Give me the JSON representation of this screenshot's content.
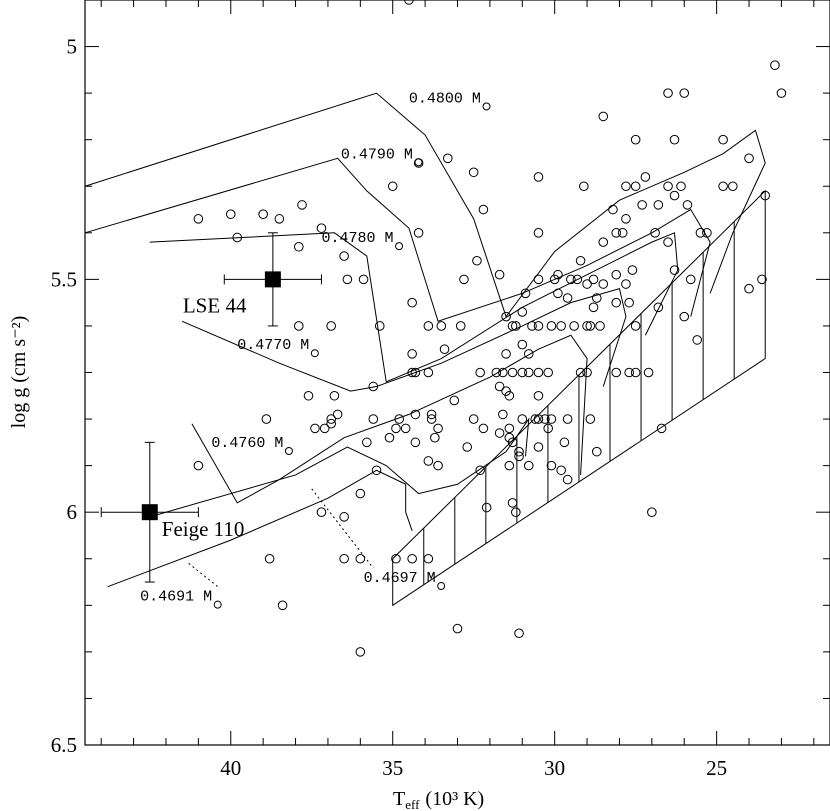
{
  "chart_data": {
    "type": "scatter",
    "xlabel_main": "T",
    "xlabel_sub": "eff",
    "xlabel_unit": "(10³ K)",
    "ylabel": "log g (cm s⁻²)",
    "xlim": [
      44.5,
      21.5
    ],
    "ylim": [
      4.9,
      6.5
    ],
    "x_ticks": [
      40,
      35,
      30,
      25
    ],
    "y_ticks": [
      5,
      5.5,
      6,
      6.5
    ],
    "y_tick_labels": [
      "5",
      "5.5",
      "6",
      "6.5"
    ],
    "tracks": [
      {
        "label": "0.4800 M",
        "points": [
          [
            44.5,
            5.3
          ],
          [
            35.5,
            5.1
          ],
          [
            34,
            5.19
          ],
          [
            32.5,
            5.37
          ],
          [
            31.5,
            5.58
          ],
          [
            30,
            5.44
          ],
          [
            28,
            5.33
          ],
          [
            26,
            5.27
          ],
          [
            24.8,
            5.23
          ],
          [
            23.8,
            5.18
          ],
          [
            23.5,
            5.25
          ],
          [
            24.5,
            5.4
          ],
          [
            25.2,
            5.53
          ]
        ]
      },
      {
        "label": "0.4790 M",
        "points": [
          [
            44.5,
            5.4
          ],
          [
            36.7,
            5.24
          ],
          [
            35.8,
            5.31
          ],
          [
            34.5,
            5.39
          ],
          [
            33.6,
            5.59
          ],
          [
            31,
            5.53
          ],
          [
            29,
            5.47
          ],
          [
            27,
            5.4
          ],
          [
            25.8,
            5.35
          ],
          [
            25.2,
            5.42
          ],
          [
            25.8,
            5.58
          ]
        ]
      },
      {
        "label": "0.4780 M",
        "points": [
          [
            42.5,
            5.42
          ],
          [
            36.8,
            5.4
          ],
          [
            35.8,
            5.45
          ],
          [
            35.2,
            5.72
          ],
          [
            33.5,
            5.67
          ],
          [
            31,
            5.56
          ],
          [
            29,
            5.49
          ],
          [
            27,
            5.42
          ],
          [
            26.3,
            5.4
          ],
          [
            26.2,
            5.48
          ],
          [
            27.2,
            5.62
          ]
        ]
      },
      {
        "label": "0.4770 M",
        "points": [
          [
            41.5,
            5.59
          ],
          [
            38.5,
            5.68
          ],
          [
            36.3,
            5.74
          ],
          [
            35.5,
            5.73
          ],
          [
            33.5,
            5.68
          ],
          [
            31,
            5.6
          ],
          [
            29.5,
            5.55
          ],
          [
            28,
            5.52
          ],
          [
            27.8,
            5.58
          ],
          [
            28.5,
            5.73
          ]
        ]
      },
      {
        "label": "0.4760 M",
        "points": [
          [
            41.2,
            5.81
          ],
          [
            39.8,
            5.98
          ],
          [
            38.5,
            5.93
          ],
          [
            36.5,
            5.84
          ],
          [
            34.5,
            5.79
          ],
          [
            32,
            5.71
          ],
          [
            30.5,
            5.65
          ],
          [
            29.5,
            5.62
          ],
          [
            29,
            5.67
          ],
          [
            29.2,
            5.92
          ]
        ]
      },
      {
        "label": "0.4697 M",
        "points": [
          [
            42.5,
            6.01
          ],
          [
            38,
            5.92
          ],
          [
            36.4,
            5.86
          ],
          [
            35.2,
            5.9
          ],
          [
            34.2,
            5.96
          ],
          [
            33,
            5.94
          ],
          [
            31.5,
            5.87
          ],
          [
            30.8,
            5.8
          ],
          [
            30.9,
            5.88
          ]
        ]
      },
      {
        "label": "0.4691 M",
        "points": [
          [
            43.8,
            6.16
          ],
          [
            40,
            6.06
          ],
          [
            37,
            5.97
          ],
          [
            35.5,
            5.91
          ],
          [
            34.6,
            5.94
          ],
          [
            34.6,
            6.0
          ],
          [
            34.4,
            6.04
          ]
        ]
      }
    ],
    "zams_band": {
      "lower": [
        [
          35,
          6.2
        ],
        [
          23.5,
          5.67
        ]
      ],
      "upper": [
        [
          35,
          6.1
        ],
        [
          23.5,
          5.31
        ]
      ]
    },
    "named_stars": [
      {
        "label": "LSE 44",
        "x": 38.7,
        "y": 5.5,
        "xerr": 1.5,
        "yerr": 0.1
      },
      {
        "label": "Feige 110",
        "x": 42.5,
        "y": 6.0,
        "xerr": 1.5,
        "yerr": 0.15
      }
    ],
    "points": [
      [
        34.5,
        4.9
      ],
      [
        23.2,
        5.04
      ],
      [
        23.0,
        5.1
      ],
      [
        26.5,
        5.1
      ],
      [
        26.0,
        5.1
      ],
      [
        28.5,
        5.15
      ],
      [
        27.5,
        5.2
      ],
      [
        26.3,
        5.2
      ],
      [
        24.8,
        5.2
      ],
      [
        34.2,
        5.25
      ],
      [
        33.3,
        5.24
      ],
      [
        32.5,
        5.27
      ],
      [
        30.5,
        5.28
      ],
      [
        27.2,
        5.28
      ],
      [
        24,
        5.24
      ],
      [
        35,
        5.3
      ],
      [
        26.5,
        5.3
      ],
      [
        26.1,
        5.3
      ],
      [
        27.8,
        5.3
      ],
      [
        27.5,
        5.3
      ],
      [
        29.1,
        5.3
      ],
      [
        26.3,
        5.32
      ],
      [
        24.5,
        5.3
      ],
      [
        24.8,
        5.3
      ],
      [
        23.5,
        5.32
      ],
      [
        39,
        5.36
      ],
      [
        37.8,
        5.34
      ],
      [
        40,
        5.36
      ],
      [
        38.5,
        5.37
      ],
      [
        41,
        5.37
      ],
      [
        32.2,
        5.35
      ],
      [
        28.2,
        5.35
      ],
      [
        27.8,
        5.37
      ],
      [
        27.3,
        5.34
      ],
      [
        26.8,
        5.34
      ],
      [
        25.9,
        5.34
      ],
      [
        25.5,
        5.4
      ],
      [
        26.9,
        5.4
      ],
      [
        28.1,
        5.4
      ],
      [
        27.9,
        5.4
      ],
      [
        30.5,
        5.4
      ],
      [
        25.3,
        5.4
      ],
      [
        39.8,
        5.41
      ],
      [
        37.2,
        5.39
      ],
      [
        34.2,
        5.4
      ],
      [
        37.9,
        5.43
      ],
      [
        36.5,
        5.45
      ],
      [
        32.4,
        5.46
      ],
      [
        28.5,
        5.42
      ],
      [
        26.5,
        5.42
      ],
      [
        29.2,
        5.46
      ],
      [
        29.9,
        5.49
      ],
      [
        31.7,
        5.49
      ],
      [
        30,
        5.5
      ],
      [
        29.5,
        5.5
      ],
      [
        29.3,
        5.5
      ],
      [
        28.8,
        5.5
      ],
      [
        29.0,
        5.51
      ],
      [
        28.5,
        5.51
      ],
      [
        28.1,
        5.49
      ],
      [
        27.8,
        5.51
      ],
      [
        27.6,
        5.48
      ],
      [
        26.3,
        5.48
      ],
      [
        24.0,
        5.52
      ],
      [
        23.6,
        5.5
      ],
      [
        25.8,
        5.5
      ],
      [
        35.9,
        5.5
      ],
      [
        36.4,
        5.5
      ],
      [
        32.8,
        5.5
      ],
      [
        30.5,
        5.5
      ],
      [
        30.9,
        5.53
      ],
      [
        29.9,
        5.53
      ],
      [
        34.4,
        5.55
      ],
      [
        29.6,
        5.54
      ],
      [
        27.7,
        5.55
      ],
      [
        28.1,
        5.55
      ],
      [
        28.7,
        5.54
      ],
      [
        28.8,
        5.56
      ],
      [
        26.8,
        5.56
      ],
      [
        31,
        5.57
      ],
      [
        31.5,
        5.58
      ],
      [
        37.9,
        5.6
      ],
      [
        36.9,
        5.6
      ],
      [
        35.4,
        5.6
      ],
      [
        33.9,
        5.6
      ],
      [
        33.5,
        5.6
      ],
      [
        32.9,
        5.6
      ],
      [
        31.3,
        5.6
      ],
      [
        31.2,
        5.6
      ],
      [
        30.7,
        5.6
      ],
      [
        30.5,
        5.6
      ],
      [
        30.1,
        5.6
      ],
      [
        29.8,
        5.6
      ],
      [
        29.4,
        5.6
      ],
      [
        29.0,
        5.6
      ],
      [
        28.9,
        5.6
      ],
      [
        27.5,
        5.6
      ],
      [
        26,
        5.58
      ],
      [
        28.6,
        5.6
      ],
      [
        33.4,
        5.65
      ],
      [
        31.5,
        5.66
      ],
      [
        30.8,
        5.66
      ],
      [
        31.0,
        5.64
      ],
      [
        25.6,
        5.63
      ],
      [
        34.4,
        5.66
      ],
      [
        34.3,
        5.7
      ],
      [
        34.4,
        5.7
      ],
      [
        32.3,
        5.7
      ],
      [
        31.8,
        5.7
      ],
      [
        31.6,
        5.7
      ],
      [
        31.3,
        5.7
      ],
      [
        31.0,
        5.7
      ],
      [
        30.8,
        5.7
      ],
      [
        30.5,
        5.7
      ],
      [
        30.2,
        5.7
      ],
      [
        29.2,
        5.7
      ],
      [
        29.0,
        5.7
      ],
      [
        28.1,
        5.7
      ],
      [
        27.7,
        5.7
      ],
      [
        27.5,
        5.7
      ],
      [
        27.1,
        5.7
      ],
      [
        33.9,
        5.7
      ],
      [
        31.7,
        5.73
      ],
      [
        31.5,
        5.74
      ],
      [
        31.4,
        5.75
      ],
      [
        30.5,
        5.75
      ],
      [
        33.1,
        5.76
      ],
      [
        37.6,
        5.75
      ],
      [
        36.8,
        5.75
      ],
      [
        35.6,
        5.73
      ],
      [
        34.3,
        5.79
      ],
      [
        33.8,
        5.79
      ],
      [
        34.8,
        5.8
      ],
      [
        32.5,
        5.8
      ],
      [
        31.6,
        5.79
      ],
      [
        31,
        5.8
      ],
      [
        30.5,
        5.8
      ],
      [
        30.1,
        5.8
      ],
      [
        29.6,
        5.8
      ],
      [
        28.9,
        5.8
      ],
      [
        36.9,
        5.8
      ],
      [
        35.6,
        5.8
      ],
      [
        36.9,
        5.81
      ],
      [
        35.8,
        5.85
      ],
      [
        33.8,
        5.8
      ],
      [
        36.7,
        5.79
      ],
      [
        34.9,
        5.82
      ],
      [
        34.6,
        5.82
      ],
      [
        33.6,
        5.82
      ],
      [
        37.1,
        5.82
      ],
      [
        38.9,
        5.8
      ],
      [
        37.4,
        5.82
      ],
      [
        35.1,
        5.84
      ],
      [
        32.2,
        5.82
      ],
      [
        31.7,
        5.83
      ],
      [
        31.4,
        5.82
      ],
      [
        30.6,
        5.8
      ],
      [
        30.3,
        5.8
      ],
      [
        30.2,
        5.82
      ],
      [
        29.7,
        5.85
      ],
      [
        31.4,
        5.84
      ],
      [
        31.3,
        5.85
      ],
      [
        31.1,
        5.87
      ],
      [
        30.5,
        5.86
      ],
      [
        33.7,
        5.84
      ],
      [
        32.7,
        5.86
      ],
      [
        31.1,
        5.88
      ],
      [
        30.8,
        5.9
      ],
      [
        26.7,
        5.82
      ],
      [
        28.7,
        5.87
      ],
      [
        34.3,
        5.85
      ],
      [
        33.6,
        5.9
      ],
      [
        33.9,
        5.89
      ],
      [
        32.3,
        5.91
      ],
      [
        31.4,
        5.9
      ],
      [
        30.1,
        5.9
      ],
      [
        29.8,
        5.91
      ],
      [
        29.6,
        5.93
      ],
      [
        35.5,
        5.91
      ],
      [
        32.1,
        5.99
      ],
      [
        31.3,
        5.98
      ],
      [
        41.0,
        5.9
      ],
      [
        36,
        5.96
      ],
      [
        37.2,
        6.0
      ],
      [
        36.5,
        6.01
      ],
      [
        31.2,
        6.0
      ],
      [
        27.0,
        6.0
      ],
      [
        38.8,
        6.1
      ],
      [
        36,
        6.1
      ],
      [
        34.9,
        6.1
      ],
      [
        34.4,
        6.1
      ],
      [
        33.9,
        6.1
      ],
      [
        36.5,
        6.1
      ],
      [
        38.4,
        6.2
      ],
      [
        33,
        6.25
      ],
      [
        31.1,
        6.26
      ],
      [
        36,
        6.3
      ]
    ]
  }
}
